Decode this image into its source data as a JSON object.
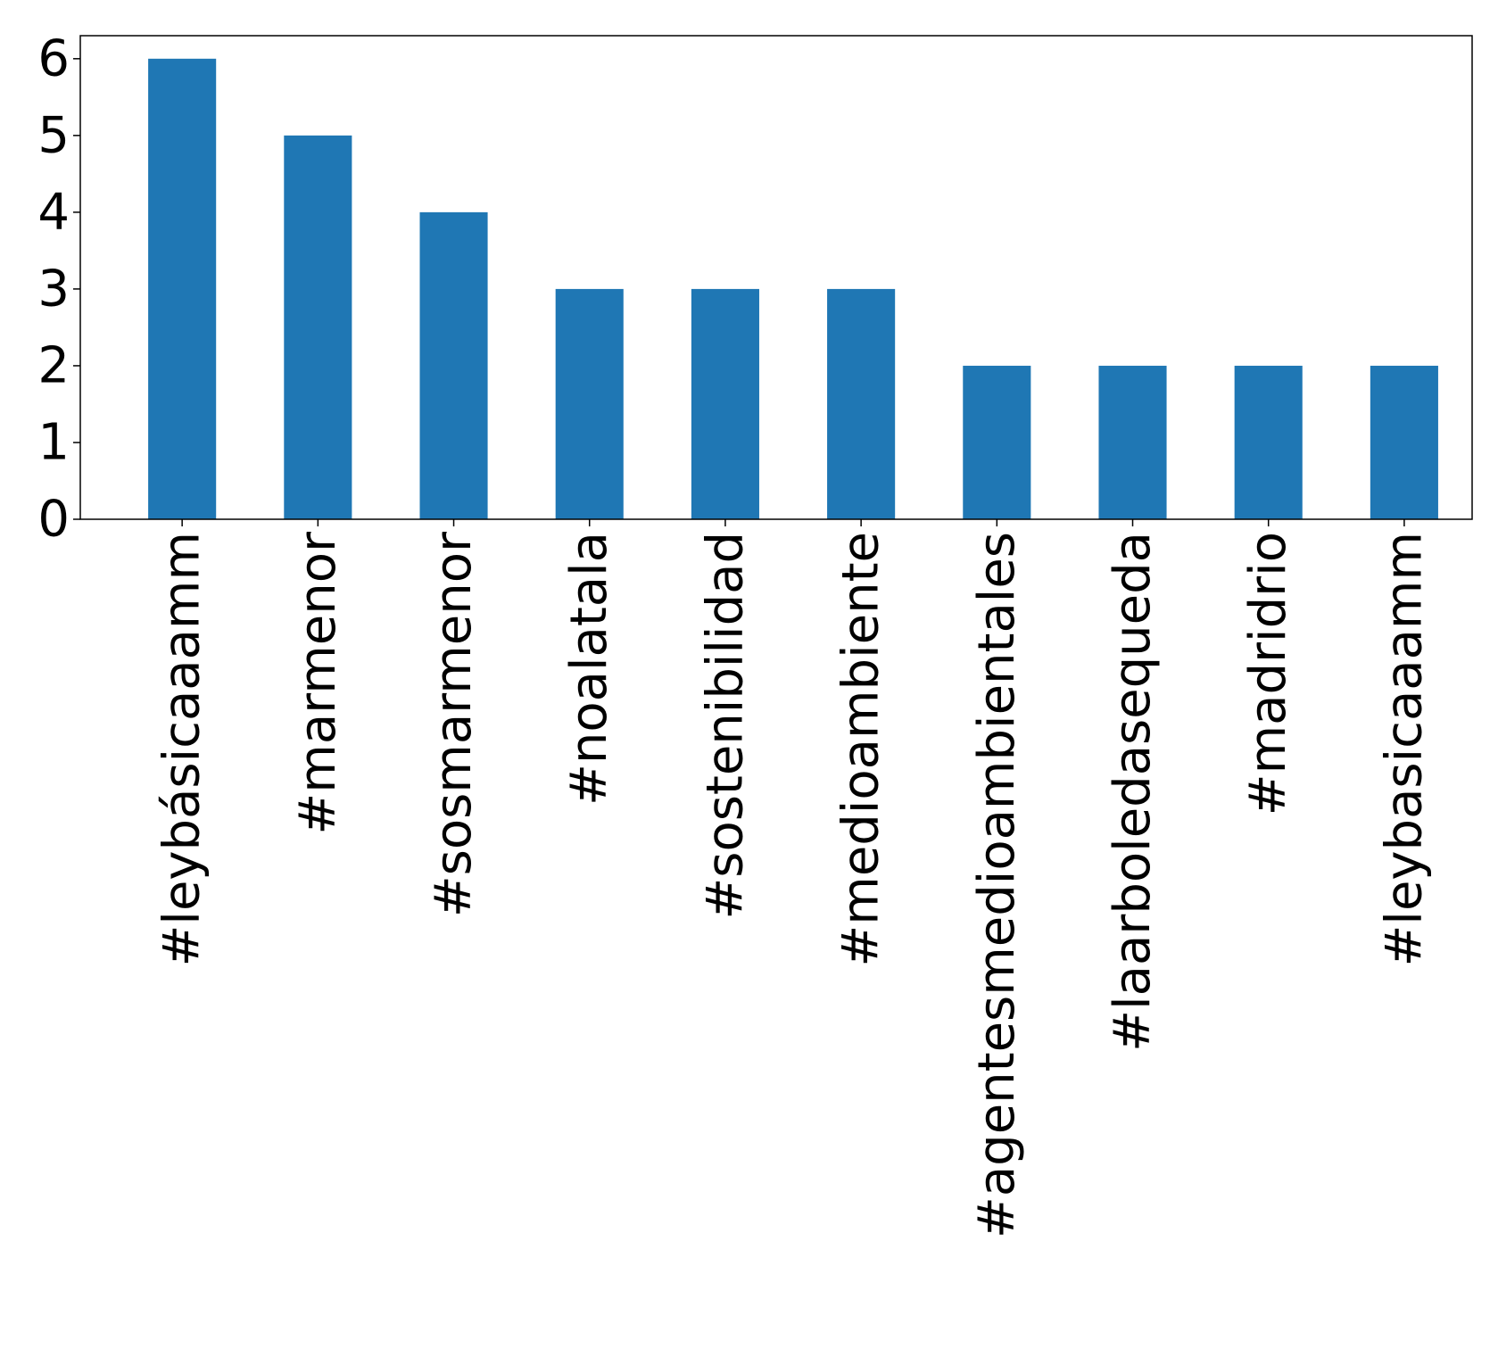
{
  "chart_data": {
    "type": "bar",
    "title": "",
    "xlabel": "",
    "ylabel": "",
    "categories": [
      "#leybásicaaamm",
      "#marmenor",
      "#sosmarmenor",
      "#noalatala",
      "#sostenibilidad",
      "#medioambiente",
      "#agentesmedioambientales",
      "#laarboledasequeda",
      "#madridrio",
      "#leybasicaaamm"
    ],
    "values": [
      6,
      5,
      4,
      3,
      3,
      3,
      2,
      2,
      2,
      2
    ],
    "ylim": [
      0,
      6.3
    ],
    "yticks": [
      0,
      1,
      2,
      3,
      4,
      5,
      6
    ],
    "ytick_labels": [
      "0",
      "1",
      "2",
      "3",
      "4",
      "5",
      "6"
    ],
    "bar_color": "#1f77b4",
    "grid": false,
    "legend": "none",
    "x_tick_rotation": "vertical"
  }
}
